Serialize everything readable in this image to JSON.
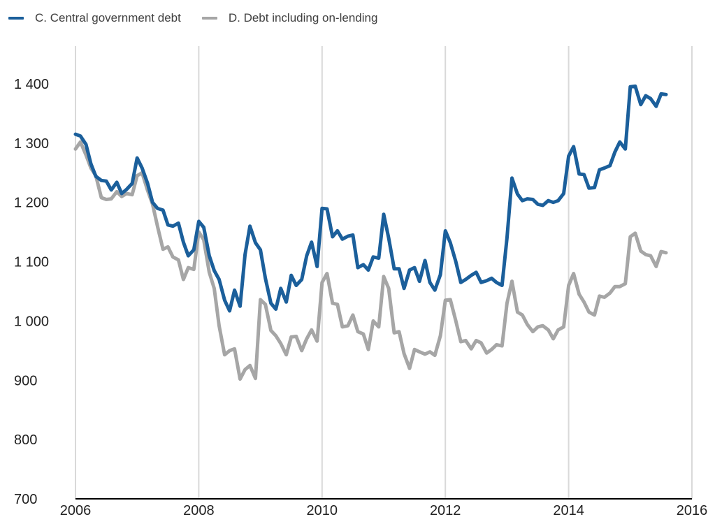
{
  "chart_data": {
    "type": "line",
    "title": "",
    "xlabel": "",
    "ylabel": "",
    "xlim": [
      2006,
      2016
    ],
    "ylim": [
      700,
      1400
    ],
    "x_ticks": [
      2006,
      2008,
      2010,
      2012,
      2014,
      2016
    ],
    "y_ticks": [
      700,
      800,
      900,
      1000,
      1100,
      1200,
      1300,
      1400
    ],
    "x_tick_labels": [
      "2006",
      "2008",
      "2010",
      "2012",
      "2014",
      "2016"
    ],
    "y_tick_labels": [
      "700",
      "800",
      "900",
      "1 000",
      "1 100",
      "1 200",
      "1 300",
      "1 400"
    ],
    "grid": "vertical",
    "legend_position": "top-left",
    "series": [
      {
        "name": "C. Central government debt",
        "color": "#1b5f9b",
        "points": [
          [
            2006.0,
            1315
          ],
          [
            2006.08,
            1312
          ],
          [
            2006.17,
            1298
          ],
          [
            2006.25,
            1265
          ],
          [
            2006.33,
            1244
          ],
          [
            2006.42,
            1237
          ],
          [
            2006.5,
            1236
          ],
          [
            2006.58,
            1221
          ],
          [
            2006.67,
            1234
          ],
          [
            2006.75,
            1215
          ],
          [
            2006.83,
            1222
          ],
          [
            2006.92,
            1232
          ],
          [
            2007.0,
            1275
          ],
          [
            2007.08,
            1258
          ],
          [
            2007.17,
            1232
          ],
          [
            2007.25,
            1200
          ],
          [
            2007.33,
            1190
          ],
          [
            2007.42,
            1187
          ],
          [
            2007.5,
            1162
          ],
          [
            2007.58,
            1160
          ],
          [
            2007.67,
            1165
          ],
          [
            2007.75,
            1133
          ],
          [
            2007.83,
            1110
          ],
          [
            2007.92,
            1120
          ],
          [
            2008.0,
            1168
          ],
          [
            2008.08,
            1158
          ],
          [
            2008.17,
            1110
          ],
          [
            2008.25,
            1085
          ],
          [
            2008.33,
            1070
          ],
          [
            2008.42,
            1035
          ],
          [
            2008.5,
            1017
          ],
          [
            2008.58,
            1052
          ],
          [
            2008.67,
            1025
          ],
          [
            2008.75,
            1112
          ],
          [
            2008.83,
            1160
          ],
          [
            2008.92,
            1132
          ],
          [
            2009.0,
            1120
          ],
          [
            2009.08,
            1072
          ],
          [
            2009.17,
            1030
          ],
          [
            2009.25,
            1020
          ],
          [
            2009.33,
            1055
          ],
          [
            2009.42,
            1032
          ],
          [
            2009.5,
            1077
          ],
          [
            2009.58,
            1060
          ],
          [
            2009.67,
            1070
          ],
          [
            2009.75,
            1110
          ],
          [
            2009.83,
            1133
          ],
          [
            2009.92,
            1092
          ],
          [
            2010.0,
            1190
          ],
          [
            2010.08,
            1189
          ],
          [
            2010.17,
            1142
          ],
          [
            2010.25,
            1152
          ],
          [
            2010.33,
            1138
          ],
          [
            2010.42,
            1143
          ],
          [
            2010.5,
            1145
          ],
          [
            2010.58,
            1090
          ],
          [
            2010.67,
            1095
          ],
          [
            2010.75,
            1086
          ],
          [
            2010.83,
            1108
          ],
          [
            2010.92,
            1106
          ],
          [
            2011.0,
            1180
          ],
          [
            2011.08,
            1140
          ],
          [
            2011.17,
            1088
          ],
          [
            2011.25,
            1088
          ],
          [
            2011.33,
            1055
          ],
          [
            2011.42,
            1086
          ],
          [
            2011.5,
            1090
          ],
          [
            2011.58,
            1067
          ],
          [
            2011.67,
            1102
          ],
          [
            2011.75,
            1065
          ],
          [
            2011.83,
            1052
          ],
          [
            2011.92,
            1078
          ],
          [
            2012.0,
            1152
          ],
          [
            2012.08,
            1132
          ],
          [
            2012.17,
            1100
          ],
          [
            2012.25,
            1065
          ],
          [
            2012.33,
            1070
          ],
          [
            2012.42,
            1077
          ],
          [
            2012.5,
            1082
          ],
          [
            2012.58,
            1065
          ],
          [
            2012.67,
            1068
          ],
          [
            2012.75,
            1072
          ],
          [
            2012.83,
            1065
          ],
          [
            2012.92,
            1060
          ],
          [
            2013.0,
            1140
          ],
          [
            2013.08,
            1241
          ],
          [
            2013.17,
            1214
          ],
          [
            2013.25,
            1203
          ],
          [
            2013.33,
            1206
          ],
          [
            2013.42,
            1205
          ],
          [
            2013.5,
            1197
          ],
          [
            2013.58,
            1195
          ],
          [
            2013.67,
            1203
          ],
          [
            2013.75,
            1200
          ],
          [
            2013.83,
            1203
          ],
          [
            2013.92,
            1215
          ],
          [
            2014.0,
            1278
          ],
          [
            2014.08,
            1294
          ],
          [
            2014.17,
            1248
          ],
          [
            2014.25,
            1247
          ],
          [
            2014.33,
            1224
          ],
          [
            2014.42,
            1225
          ],
          [
            2014.5,
            1255
          ],
          [
            2014.58,
            1258
          ],
          [
            2014.67,
            1262
          ],
          [
            2014.75,
            1285
          ],
          [
            2014.83,
            1302
          ],
          [
            2014.92,
            1290
          ],
          [
            2015.0,
            1395
          ],
          [
            2015.08,
            1396
          ],
          [
            2015.17,
            1365
          ],
          [
            2015.25,
            1380
          ],
          [
            2015.33,
            1375
          ],
          [
            2015.42,
            1362
          ],
          [
            2015.5,
            1383
          ],
          [
            2015.58,
            1382
          ]
        ]
      },
      {
        "name": "D. Debt including on-lending",
        "color": "#a6a6a6",
        "points": [
          [
            2006.0,
            1290
          ],
          [
            2006.08,
            1302
          ],
          [
            2006.17,
            1280
          ],
          [
            2006.25,
            1258
          ],
          [
            2006.33,
            1245
          ],
          [
            2006.42,
            1208
          ],
          [
            2006.5,
            1205
          ],
          [
            2006.58,
            1206
          ],
          [
            2006.67,
            1218
          ],
          [
            2006.75,
            1210
          ],
          [
            2006.83,
            1215
          ],
          [
            2006.92,
            1213
          ],
          [
            2007.0,
            1245
          ],
          [
            2007.08,
            1250
          ],
          [
            2007.17,
            1220
          ],
          [
            2007.25,
            1197
          ],
          [
            2007.33,
            1160
          ],
          [
            2007.42,
            1121
          ],
          [
            2007.5,
            1125
          ],
          [
            2007.58,
            1108
          ],
          [
            2007.67,
            1103
          ],
          [
            2007.75,
            1070
          ],
          [
            2007.83,
            1090
          ],
          [
            2007.92,
            1087
          ],
          [
            2008.0,
            1150
          ],
          [
            2008.08,
            1137
          ],
          [
            2008.17,
            1082
          ],
          [
            2008.25,
            1055
          ],
          [
            2008.33,
            992
          ],
          [
            2008.42,
            943
          ],
          [
            2008.5,
            950
          ],
          [
            2008.58,
            953
          ],
          [
            2008.67,
            902
          ],
          [
            2008.75,
            918
          ],
          [
            2008.83,
            925
          ],
          [
            2008.92,
            903
          ],
          [
            2009.0,
            1036
          ],
          [
            2009.08,
            1028
          ],
          [
            2009.17,
            984
          ],
          [
            2009.25,
            975
          ],
          [
            2009.33,
            962
          ],
          [
            2009.42,
            943
          ],
          [
            2009.5,
            973
          ],
          [
            2009.58,
            974
          ],
          [
            2009.67,
            950
          ],
          [
            2009.75,
            970
          ],
          [
            2009.83,
            985
          ],
          [
            2009.92,
            966
          ],
          [
            2010.0,
            1065
          ],
          [
            2010.08,
            1080
          ],
          [
            2010.17,
            1030
          ],
          [
            2010.25,
            1028
          ],
          [
            2010.33,
            990
          ],
          [
            2010.42,
            992
          ],
          [
            2010.5,
            1010
          ],
          [
            2010.58,
            982
          ],
          [
            2010.67,
            978
          ],
          [
            2010.75,
            952
          ],
          [
            2010.83,
            1000
          ],
          [
            2010.92,
            990
          ],
          [
            2011.0,
            1075
          ],
          [
            2011.08,
            1055
          ],
          [
            2011.17,
            980
          ],
          [
            2011.25,
            982
          ],
          [
            2011.33,
            945
          ],
          [
            2011.42,
            920
          ],
          [
            2011.5,
            952
          ],
          [
            2011.58,
            948
          ],
          [
            2011.67,
            944
          ],
          [
            2011.75,
            948
          ],
          [
            2011.83,
            942
          ],
          [
            2011.92,
            975
          ],
          [
            2012.0,
            1035
          ],
          [
            2012.08,
            1036
          ],
          [
            2012.17,
            1000
          ],
          [
            2012.25,
            965
          ],
          [
            2012.33,
            967
          ],
          [
            2012.42,
            953
          ],
          [
            2012.5,
            967
          ],
          [
            2012.58,
            963
          ],
          [
            2012.67,
            946
          ],
          [
            2012.75,
            952
          ],
          [
            2012.83,
            960
          ],
          [
            2012.92,
            958
          ],
          [
            2013.0,
            1030
          ],
          [
            2013.08,
            1067
          ],
          [
            2013.17,
            1015
          ],
          [
            2013.25,
            1010
          ],
          [
            2013.33,
            994
          ],
          [
            2013.42,
            982
          ],
          [
            2013.5,
            990
          ],
          [
            2013.58,
            992
          ],
          [
            2013.67,
            985
          ],
          [
            2013.75,
            970
          ],
          [
            2013.83,
            985
          ],
          [
            2013.92,
            990
          ],
          [
            2014.0,
            1060
          ],
          [
            2014.08,
            1080
          ],
          [
            2014.17,
            1045
          ],
          [
            2014.25,
            1032
          ],
          [
            2014.33,
            1015
          ],
          [
            2014.42,
            1010
          ],
          [
            2014.5,
            1042
          ],
          [
            2014.58,
            1040
          ],
          [
            2014.67,
            1047
          ],
          [
            2014.75,
            1058
          ],
          [
            2014.83,
            1058
          ],
          [
            2014.92,
            1063
          ],
          [
            2015.0,
            1142
          ],
          [
            2015.08,
            1148
          ],
          [
            2015.17,
            1118
          ],
          [
            2015.25,
            1112
          ],
          [
            2015.33,
            1110
          ],
          [
            2015.42,
            1092
          ],
          [
            2015.5,
            1117
          ],
          [
            2015.58,
            1115
          ]
        ]
      }
    ]
  }
}
